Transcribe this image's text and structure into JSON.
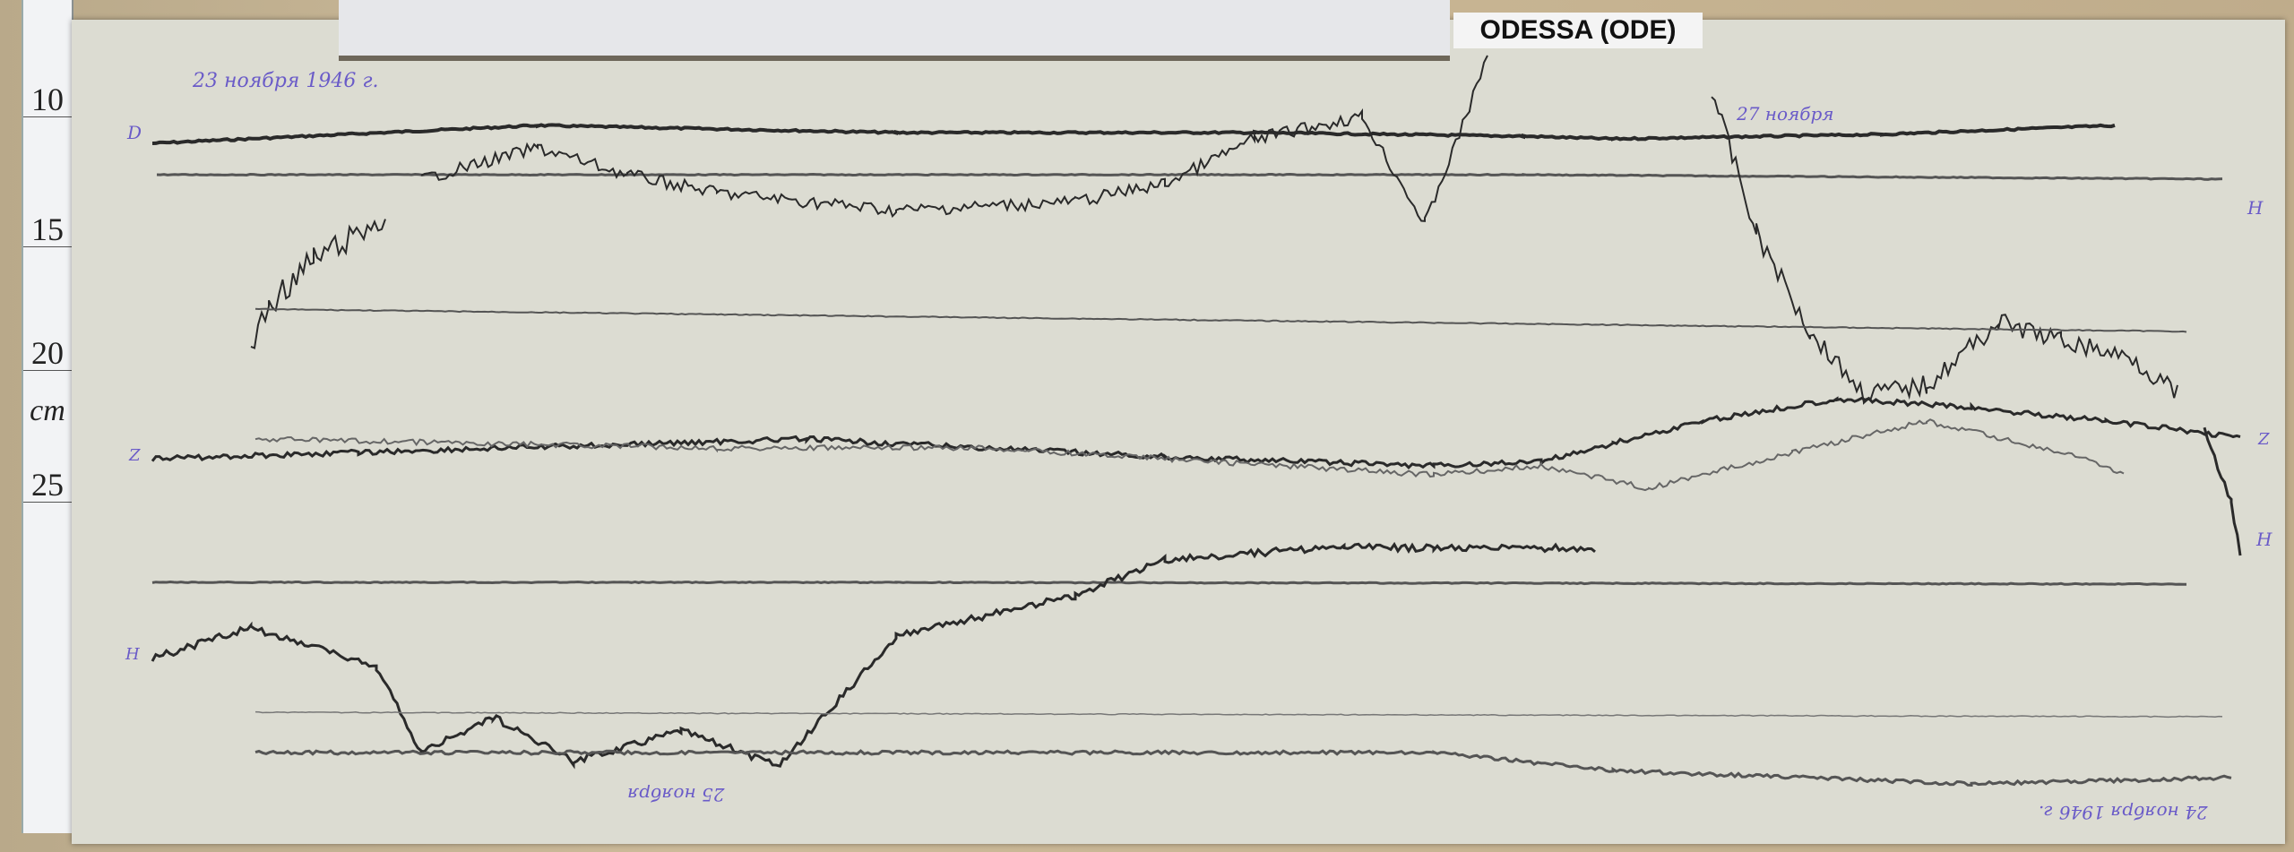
{
  "station_label": "ODESSA (ODE)",
  "ruler": {
    "ticks": [
      "10",
      "15",
      "20",
      "25"
    ],
    "unit": "cm"
  },
  "notes": {
    "top_left_date": "23 ноября 1946 г.",
    "top_right_date": "27 ноября",
    "bottom_mid_date": "25 ноября",
    "bottom_right_date": "24 ноября 1946 г."
  },
  "trace_labels": [
    "D",
    "H",
    "Z",
    "H",
    "Z",
    "H"
  ],
  "colors": {
    "trace": "#2a2a2a",
    "ink": "#6a5bc8",
    "paper": "#dcdcd2"
  }
}
